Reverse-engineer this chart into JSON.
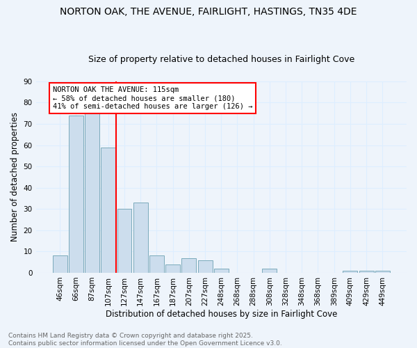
{
  "title": "NORTON OAK, THE AVENUE, FAIRLIGHT, HASTINGS, TN35 4DE",
  "subtitle": "Size of property relative to detached houses in Fairlight Cove",
  "xlabel": "Distribution of detached houses by size in Fairlight Cove",
  "ylabel": "Number of detached properties",
  "categories": [
    "46sqm",
    "66sqm",
    "87sqm",
    "107sqm",
    "127sqm",
    "147sqm",
    "167sqm",
    "187sqm",
    "207sqm",
    "227sqm",
    "248sqm",
    "268sqm",
    "288sqm",
    "308sqm",
    "328sqm",
    "348sqm",
    "368sqm",
    "389sqm",
    "409sqm",
    "429sqm",
    "449sqm"
  ],
  "values": [
    8,
    74,
    75,
    59,
    30,
    33,
    8,
    4,
    7,
    6,
    2,
    0,
    0,
    2,
    0,
    0,
    0,
    0,
    1,
    1,
    1
  ],
  "bar_color": "#ccdded",
  "bar_edge_color": "#7aaabb",
  "grid_color": "#ddeeff",
  "background_color": "#eef4fb",
  "annotation_text_line1": "NORTON OAK THE AVENUE: 115sqm",
  "annotation_text_line2": "← 58% of detached houses are smaller (180)",
  "annotation_text_line3": "41% of semi-detached houses are larger (126) →",
  "property_line_x": 3.5,
  "ylim": [
    0,
    90
  ],
  "yticks": [
    0,
    10,
    20,
    30,
    40,
    50,
    60,
    70,
    80,
    90
  ],
  "footnote_line1": "Contains HM Land Registry data © Crown copyright and database right 2025.",
  "footnote_line2": "Contains public sector information licensed under the Open Government Licence v3.0.",
  "title_fontsize": 10,
  "subtitle_fontsize": 9,
  "axis_label_fontsize": 8.5,
  "tick_fontsize": 7.5,
  "annotation_fontsize": 7.5,
  "footnote_fontsize": 6.5
}
